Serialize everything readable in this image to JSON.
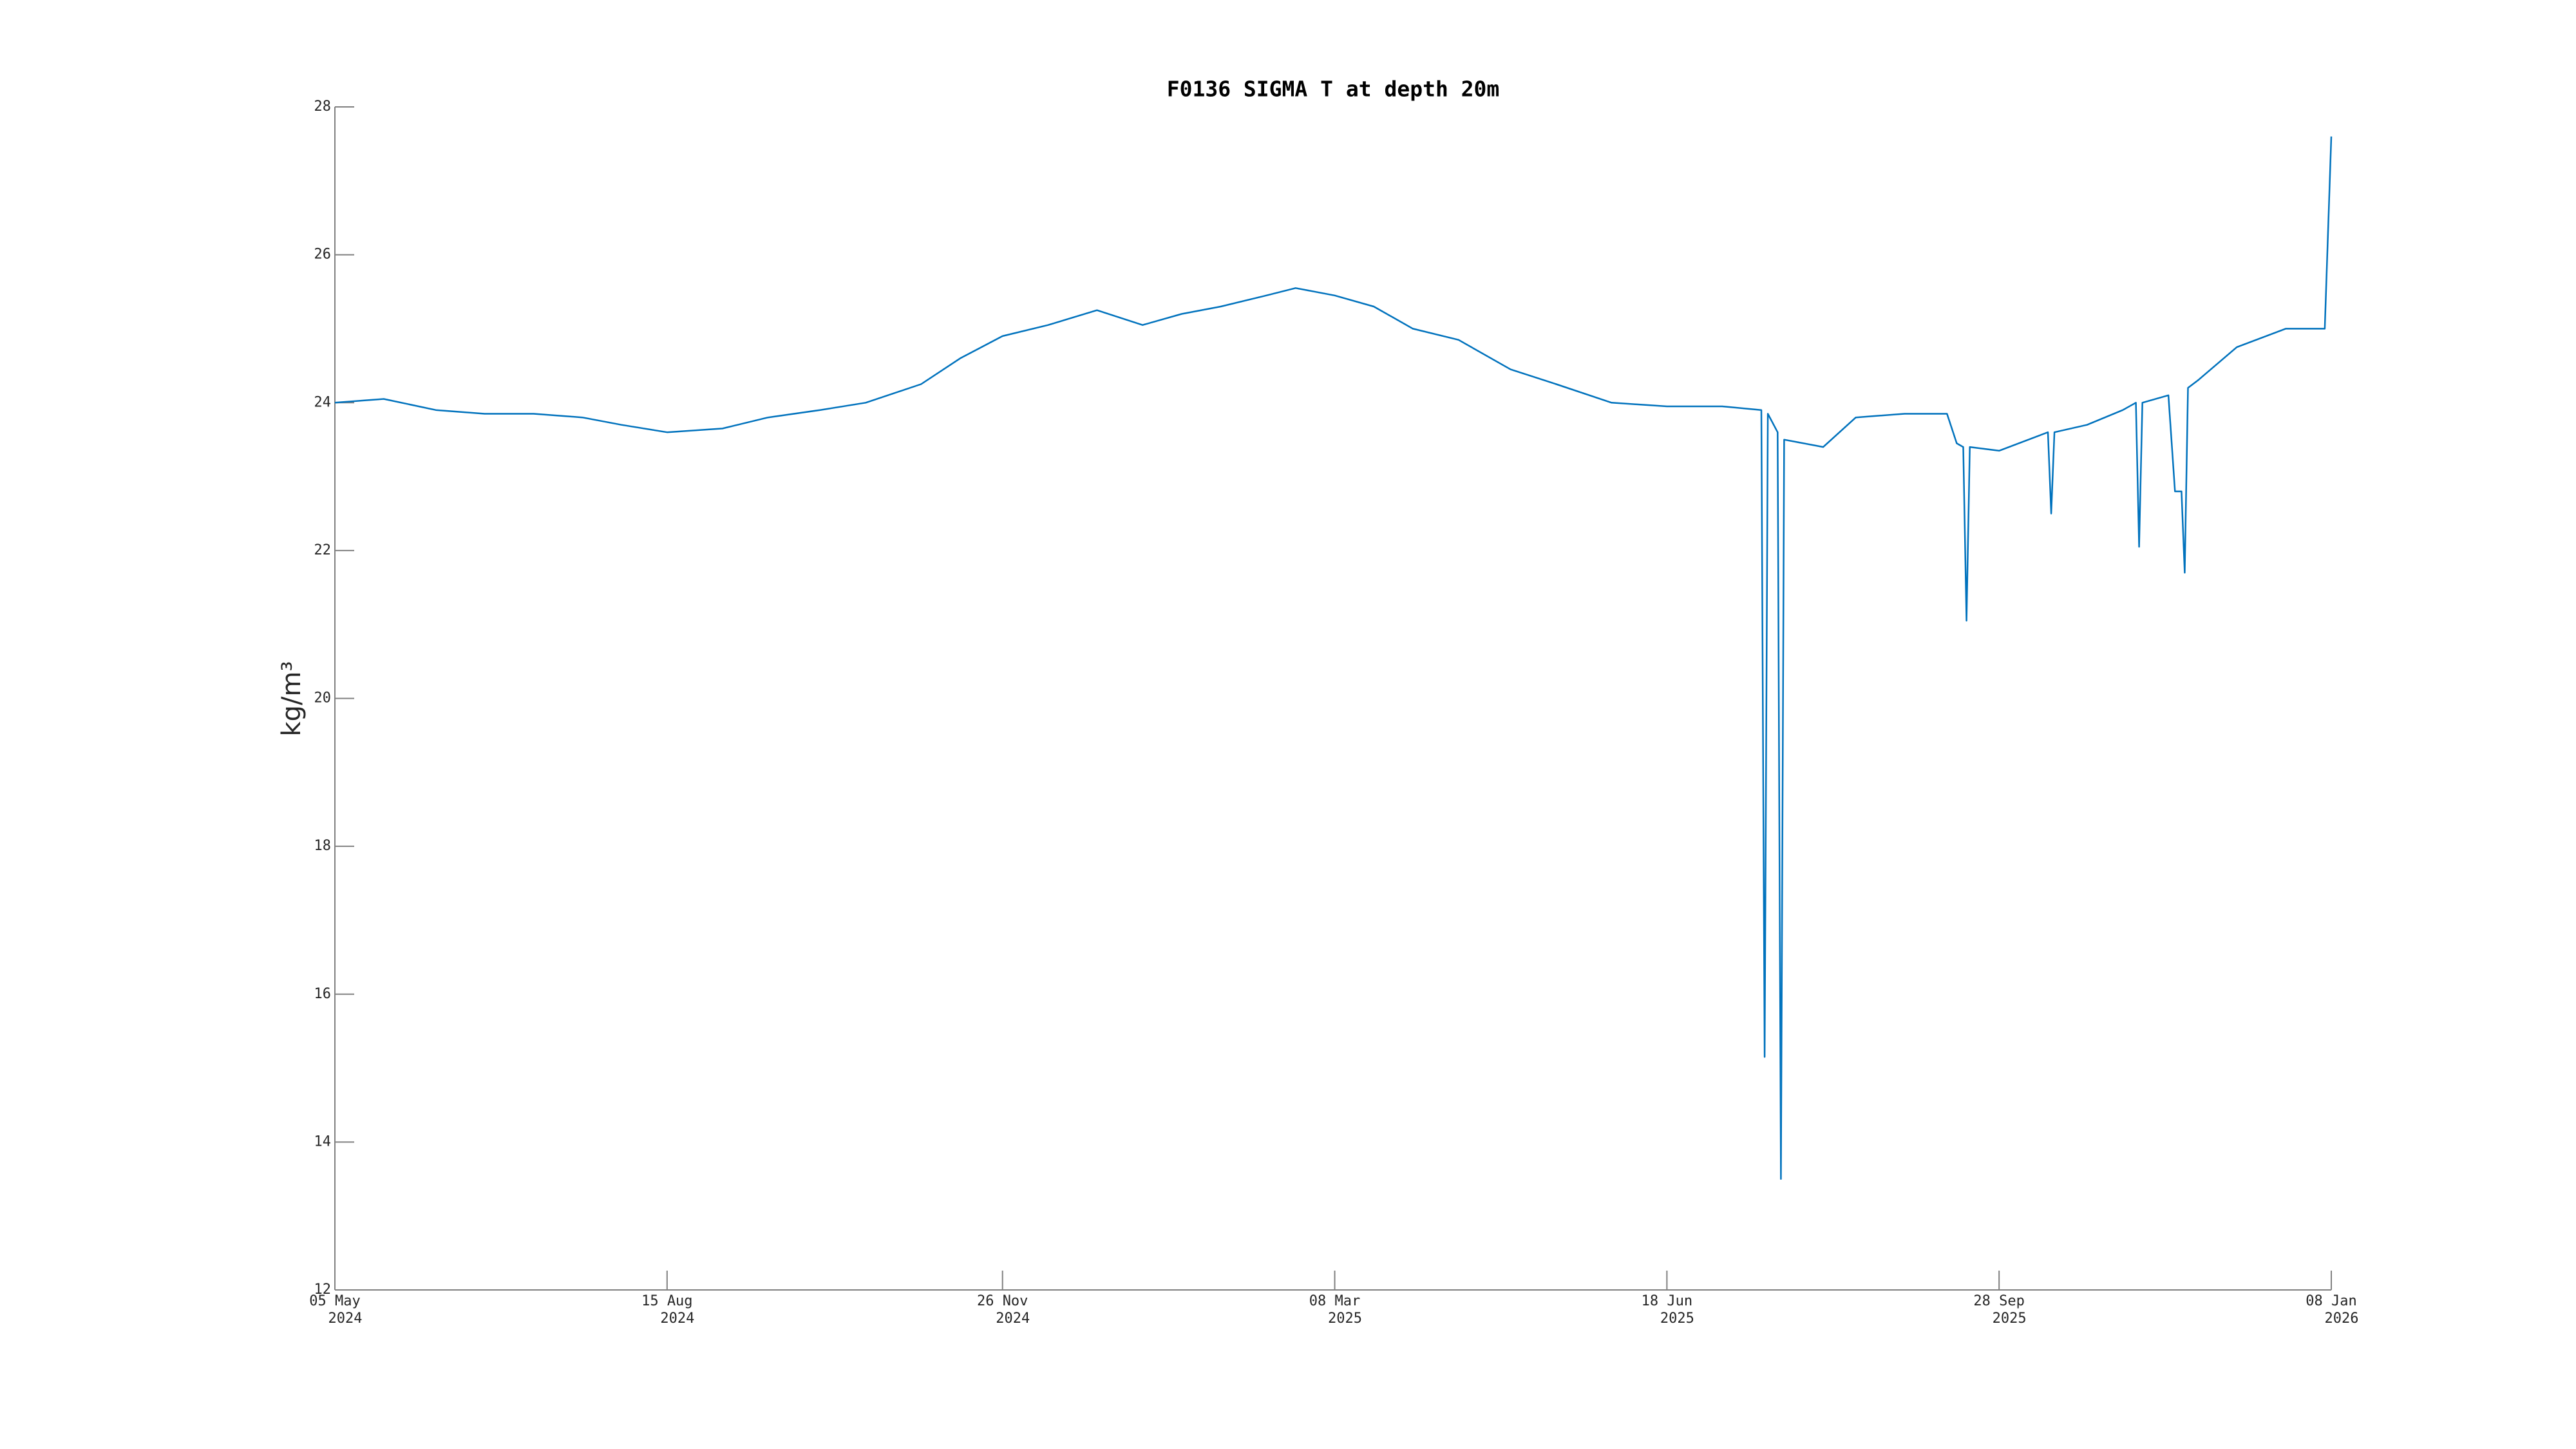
{
  "chart_data": {
    "type": "line",
    "title": "F0136 SIGMA T at depth 20m",
    "y_label": "kg/m³",
    "x": [
      "2024-05-05",
      "2024-05-20",
      "2024-06-05",
      "2024-06-20",
      "2024-07-05",
      "2024-07-20",
      "2024-08-01",
      "2024-08-15",
      "2024-09-01",
      "2024-09-15",
      "2024-10-01",
      "2024-10-15",
      "2024-11-01",
      "2024-11-13",
      "2024-11-26",
      "2024-12-10",
      "2024-12-25",
      "2025-01-08",
      "2025-01-20",
      "2025-02-01",
      "2025-02-15",
      "2025-02-24",
      "2025-03-08",
      "2025-03-20",
      "2025-04-01",
      "2025-04-15",
      "2025-05-01",
      "2025-05-15",
      "2025-06-01",
      "2025-06-18",
      "2025-07-05",
      "2025-07-17",
      "2025-07-18",
      "2025-07-19",
      "2025-07-22",
      "2025-07-23",
      "2025-07-24",
      "2025-08-05",
      "2025-08-15",
      "2025-08-30",
      "2025-09-12",
      "2025-09-15",
      "2025-09-17",
      "2025-09-18",
      "2025-09-19",
      "2025-09-28",
      "2025-10-10",
      "2025-10-13",
      "2025-10-14",
      "2025-10-15",
      "2025-10-25",
      "2025-11-05",
      "2025-11-09",
      "2025-11-10",
      "2025-11-11",
      "2025-11-19",
      "2025-11-21",
      "2025-11-23",
      "2025-11-24",
      "2025-11-25",
      "2025-11-28",
      "2025-12-10",
      "2025-12-25",
      "2026-01-06",
      "2026-01-08"
    ],
    "series": [
      {
        "name": "SIGMA T",
        "color": "#0072bd",
        "values": [
          24.0,
          24.05,
          23.9,
          23.85,
          23.85,
          23.8,
          23.7,
          23.6,
          23.65,
          23.8,
          23.9,
          24.0,
          24.25,
          24.6,
          24.9,
          25.05,
          25.25,
          25.05,
          25.2,
          25.3,
          25.45,
          25.55,
          25.45,
          25.3,
          25.0,
          24.85,
          24.45,
          24.25,
          24.0,
          23.95,
          23.95,
          23.9,
          15.15,
          23.85,
          23.6,
          13.5,
          23.5,
          23.4,
          23.8,
          23.85,
          23.85,
          23.45,
          23.4,
          21.05,
          23.4,
          23.35,
          23.55,
          23.6,
          22.5,
          23.6,
          23.7,
          23.9,
          24.0,
          22.05,
          24.0,
          24.1,
          22.8,
          22.8,
          21.7,
          24.2,
          24.3,
          24.75,
          25.0,
          25.0,
          27.6
        ]
      }
    ],
    "xlim": [
      "2024-05-05",
      "2026-01-08"
    ],
    "xticks": [
      {
        "value": "2024-05-05",
        "label": [
          "05 May",
          "2024"
        ]
      },
      {
        "value": "2024-08-15",
        "label": [
          "15 Aug",
          "2024"
        ]
      },
      {
        "value": "2024-11-26",
        "label": [
          "26 Nov",
          "2024"
        ]
      },
      {
        "value": "2025-03-08",
        "label": [
          "08 Mar",
          "2025"
        ]
      },
      {
        "value": "2025-06-18",
        "label": [
          "18 Jun",
          "2025"
        ]
      },
      {
        "value": "2025-09-28",
        "label": [
          "28 Sep",
          "2025"
        ]
      },
      {
        "value": "2026-01-08",
        "label": [
          "08 Jan",
          "2026"
        ]
      }
    ],
    "ylim": [
      12,
      28
    ],
    "yticks": [
      12,
      14,
      16,
      18,
      20,
      22,
      24,
      26,
      28
    ],
    "grid": false
  }
}
